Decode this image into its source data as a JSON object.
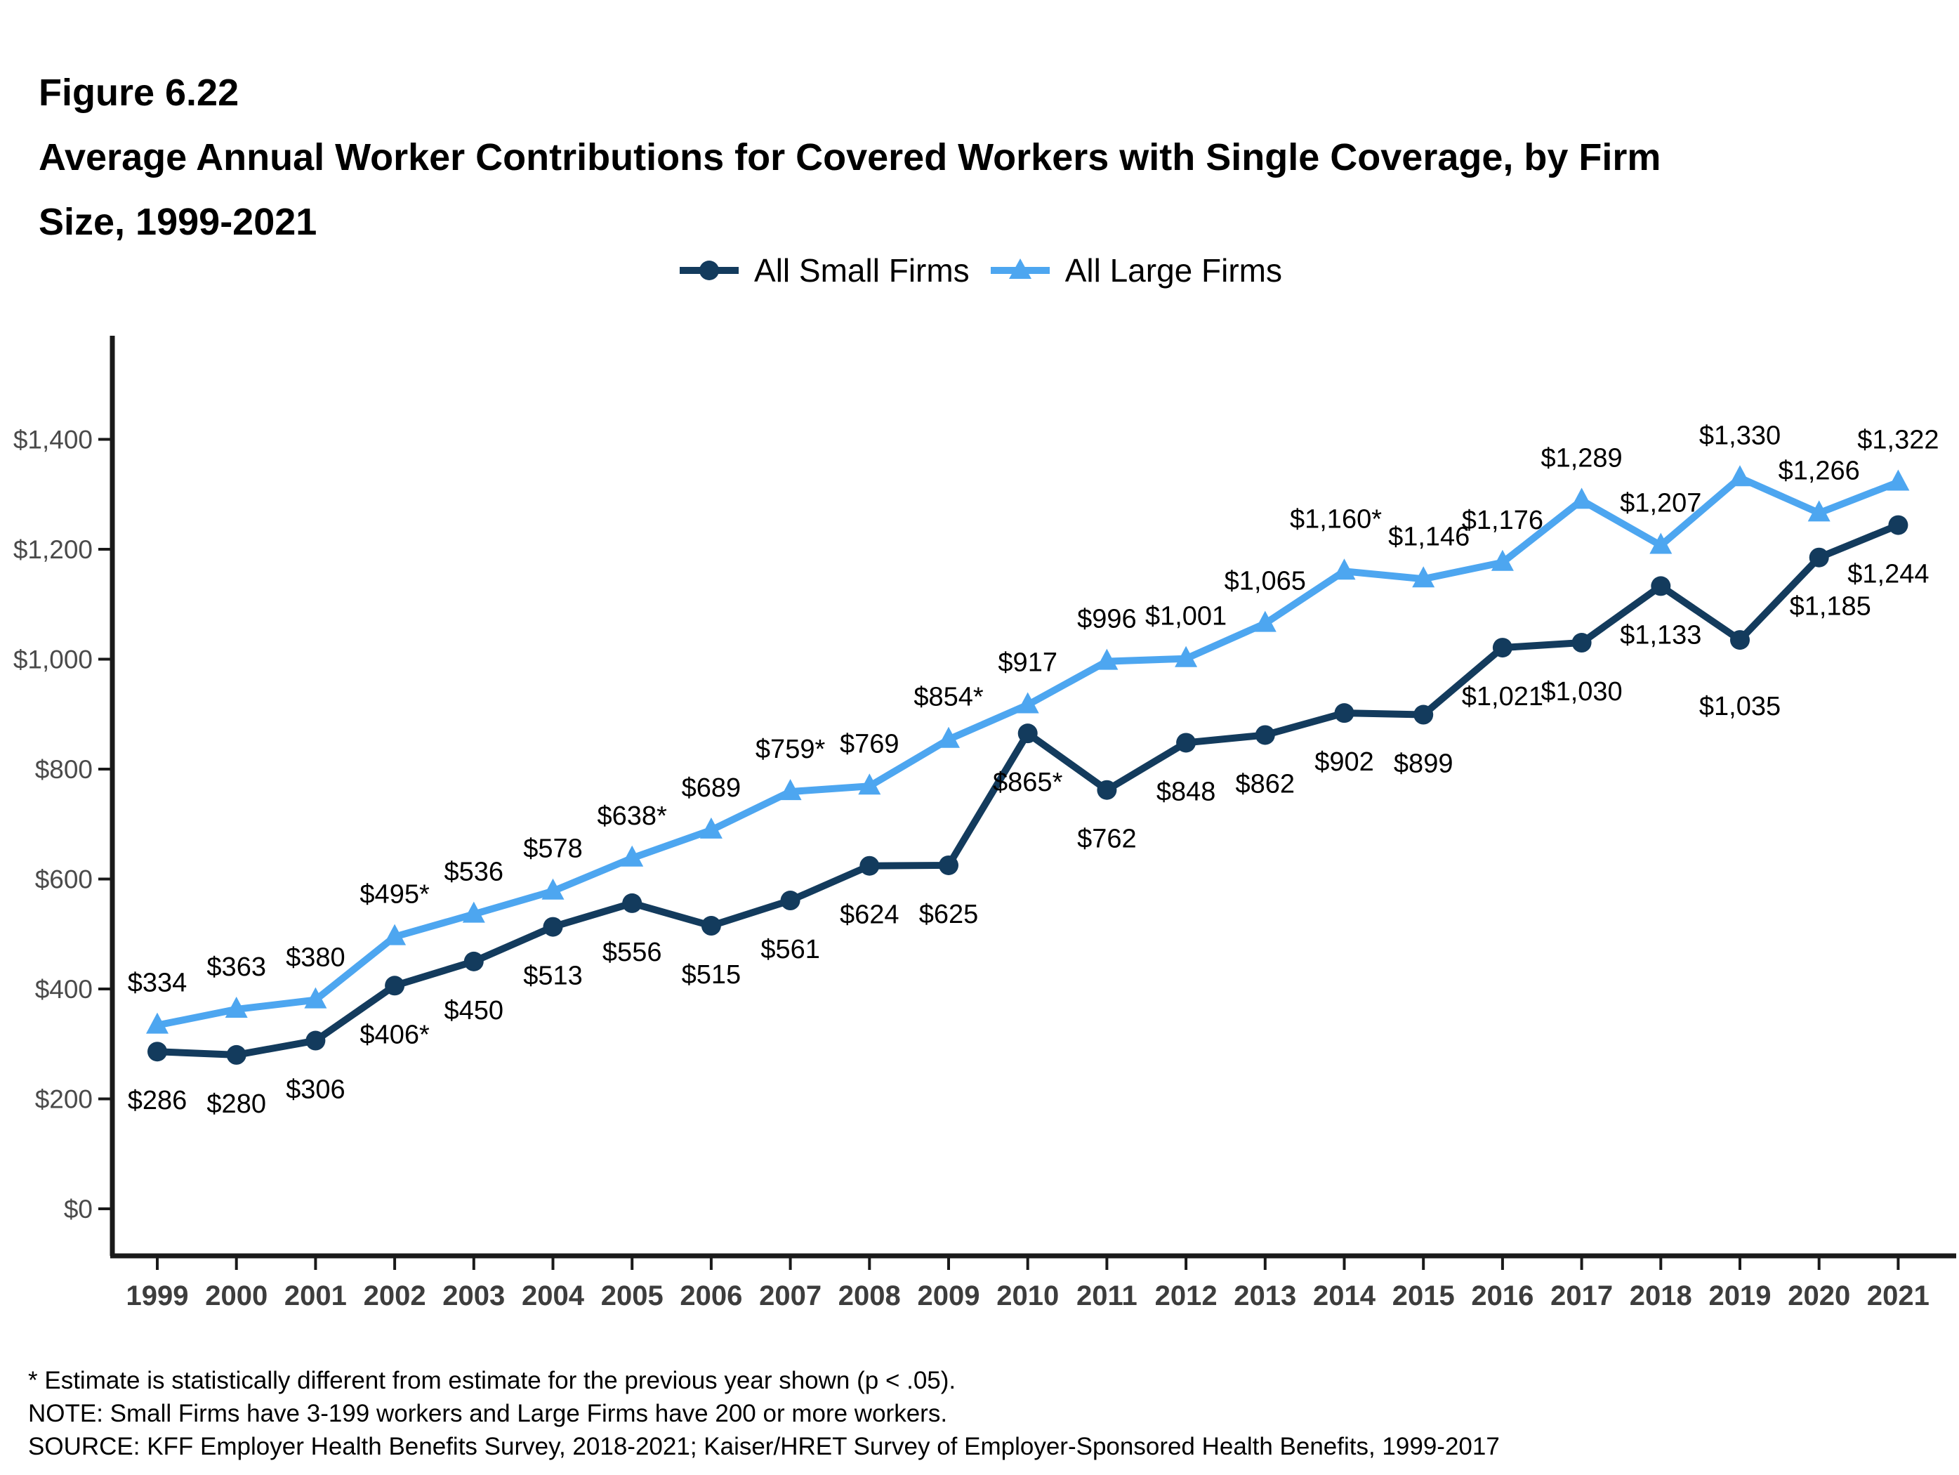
{
  "figure_label": "Figure 6.22",
  "title": {
    "line1": "Average Annual Worker Contributions for Covered Workers with Single Coverage, by Firm",
    "line2": "Size, 1999-2021"
  },
  "legend": {
    "small_firms_label": "All Small Firms",
    "large_firms_label": "All Large Firms"
  },
  "chart_data": {
    "type": "line",
    "title": "Average Annual Worker Contributions for Covered Workers with Single Coverage, by Firm Size, 1999-2021",
    "xlabel": "",
    "ylabel": "",
    "x": [
      "1999",
      "2000",
      "2001",
      "2002",
      "2003",
      "2004",
      "2005",
      "2006",
      "2007",
      "2008",
      "2009",
      "2010",
      "2011",
      "2012",
      "2013",
      "2014",
      "2015",
      "2016",
      "2017",
      "2018",
      "2019",
      "2020",
      "2021"
    ],
    "ylim": [
      0,
      1560
    ],
    "ytick_values": [
      0,
      200,
      400,
      600,
      800,
      1000,
      1200,
      1400
    ],
    "ytick_labels": [
      "$0",
      "$200",
      "$400",
      "$600",
      "$800",
      "$1,000",
      "$1,200",
      "$1,400"
    ],
    "grid": false,
    "legend_position": "top-center",
    "series": [
      {
        "name": "All Small Firms",
        "marker": "circle",
        "color": "#133B5D",
        "values": [
          286,
          280,
          306,
          406,
          450,
          513,
          556,
          515,
          561,
          624,
          625,
          865,
          762,
          848,
          862,
          902,
          899,
          1021,
          1030,
          1133,
          1035,
          1185,
          1244
        ],
        "labels": [
          "$286",
          "$280",
          "$306",
          "$406*",
          "$450",
          "$513",
          "$556",
          "$515",
          "$561",
          "$624",
          "$625",
          "$865*",
          "$762",
          "$848",
          "$862",
          "$902",
          "$899",
          "$1,021",
          "$1,030",
          "$1,133",
          "$1,035",
          "$1,185",
          "$1,244"
        ]
      },
      {
        "name": "All Large Firms",
        "marker": "triangle",
        "color": "#4DA6F0",
        "values": [
          334,
          363,
          380,
          495,
          536,
          578,
          638,
          689,
          759,
          769,
          854,
          917,
          996,
          1001,
          1065,
          1160,
          1146,
          1176,
          1289,
          1207,
          1330,
          1266,
          1322
        ],
        "labels": [
          "$334",
          "$363",
          "$380",
          "$495*",
          "$536",
          "$578",
          "$638*",
          "$689",
          "$759*",
          "$769",
          "$854*",
          "$917",
          "$996",
          "$1,001",
          "$1,065",
          "$1,160*",
          "$1,146",
          "$1,176",
          "$1,289",
          "$1,207",
          "$1,330",
          "$1,266",
          "$1,322"
        ]
      }
    ],
    "colors": {
      "axis_line": "#1a1a1a",
      "ytick_text": "#4a4a4a",
      "xtick_text": "#3d3d3d",
      "data_label_text": "#000000"
    }
  },
  "footnotes": [
    "* Estimate is statistically different from estimate for the previous year shown (p < .05).",
    "NOTE: Small Firms have 3-199 workers and Large Firms have 200 or more workers.",
    "SOURCE: KFF Employer Health Benefits Survey, 2018-2021; Kaiser/HRET Survey of Employer-Sponsored Health Benefits, 1999-2017"
  ]
}
